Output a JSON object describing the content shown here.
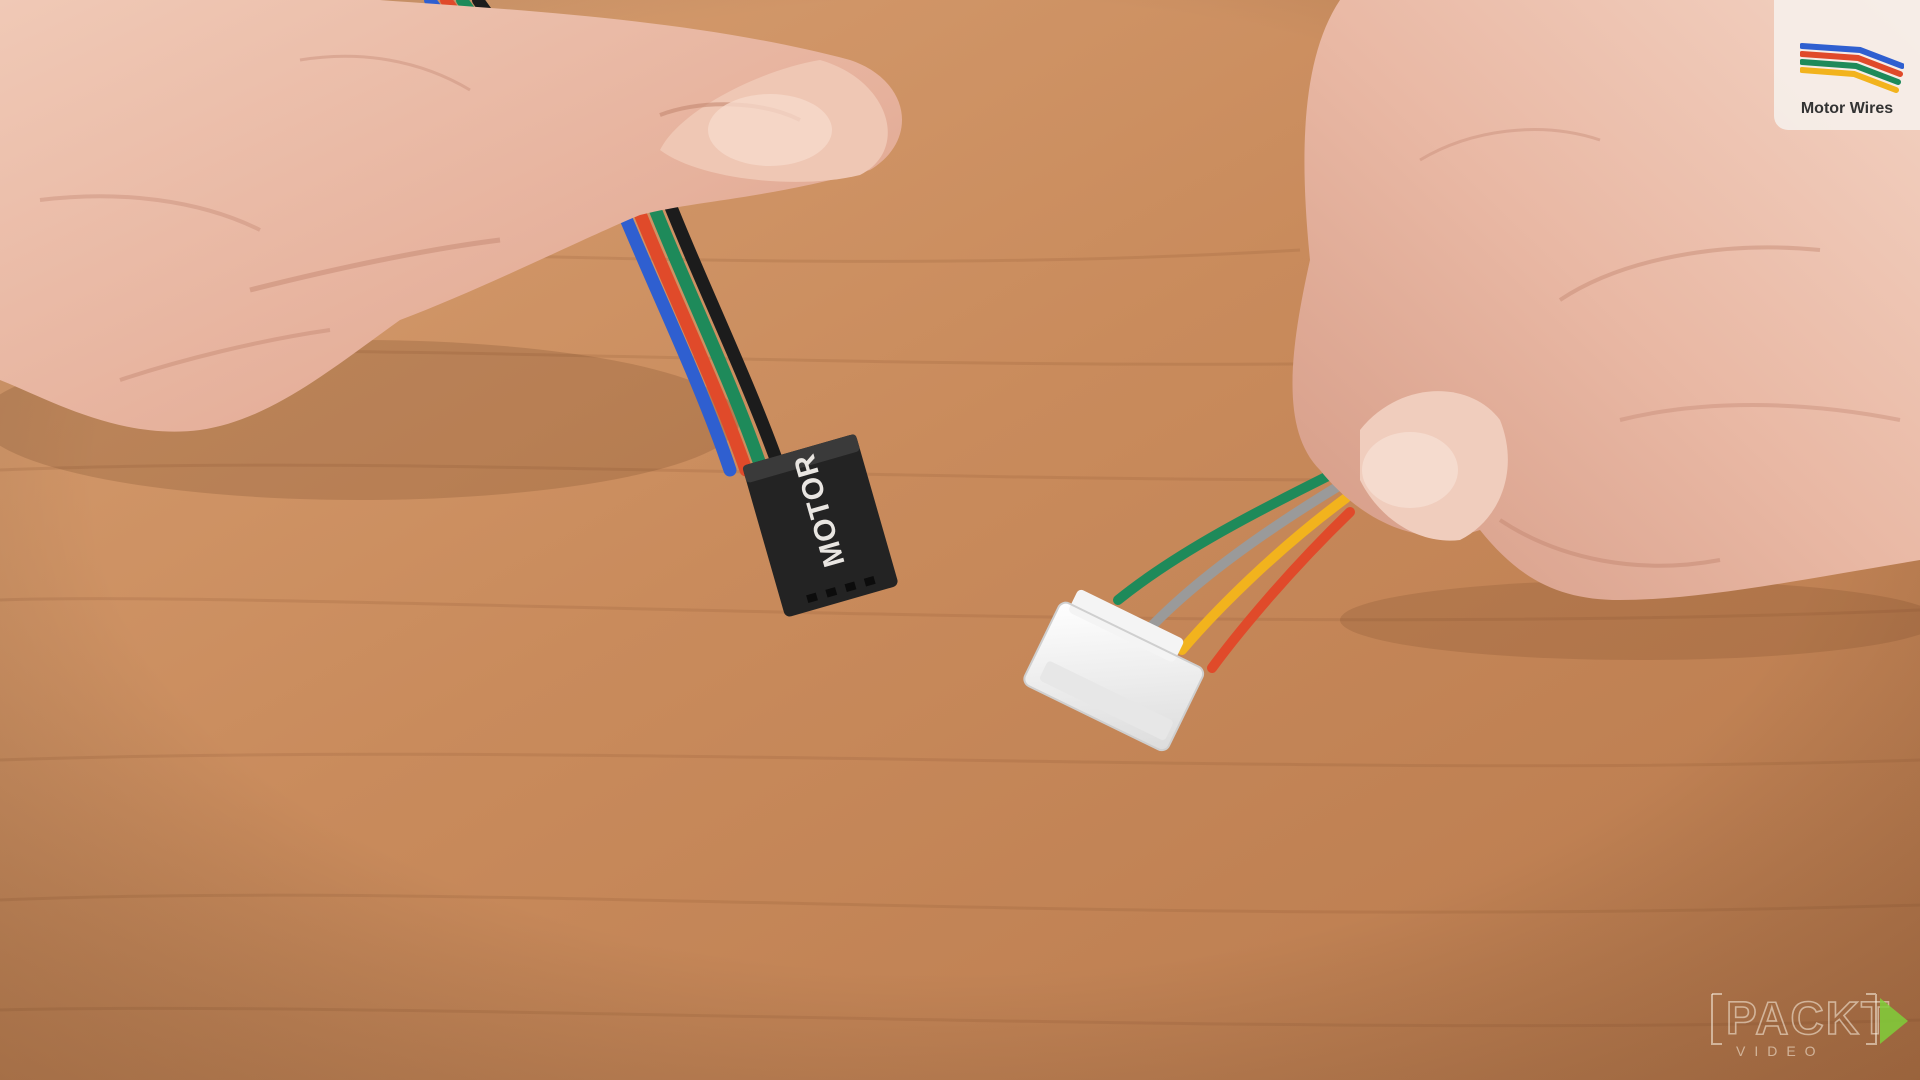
{
  "connector": {
    "label": "MOTOR"
  },
  "badge": {
    "label": "Motor Wires",
    "icon": "motor-wires-icon"
  },
  "watermark": {
    "brand": "PACKT",
    "sub": "VIDEO"
  },
  "colors": {
    "table": "#c98c5e",
    "wire_blue": "#2f5fd0",
    "wire_red": "#e04a2a",
    "wire_green": "#1e8a5a",
    "wire_black": "#1c1c1c",
    "wire_grey": "#9a9a9a",
    "wire_yellow": "#f2b31d",
    "watermark_accent": "#7fcf3a"
  }
}
